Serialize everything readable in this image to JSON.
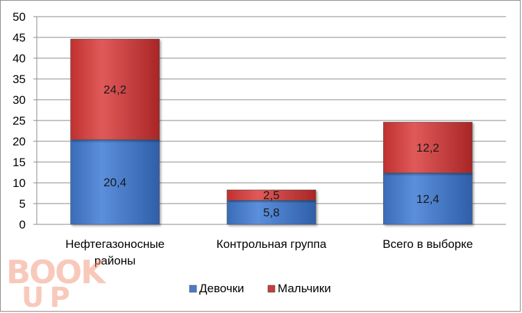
{
  "chart_data": {
    "type": "bar",
    "stacked": true,
    "categories": [
      "Нефтегазоносные районы",
      "Контрольная группа",
      "Всего в выборке"
    ],
    "category_lines": [
      [
        "Нефтегазоносные",
        "районы"
      ],
      [
        "Контрольная группа"
      ],
      [
        "Всего в выборке"
      ]
    ],
    "series": [
      {
        "name": "Девочки",
        "values": [
          20.4,
          5.8,
          12.4
        ],
        "labels": [
          "20,4",
          "5,8",
          "12,4"
        ],
        "color": "#4a7dc8"
      },
      {
        "name": "Мальчики",
        "values": [
          24.2,
          2.5,
          12.2
        ],
        "labels": [
          "24,2",
          "2,5",
          "12,2"
        ],
        "color": "#cc3b3b"
      }
    ],
    "yticks": [
      0,
      5,
      10,
      15,
      20,
      25,
      30,
      35,
      40,
      45,
      50
    ],
    "ylim": [
      0,
      50
    ],
    "grid": true,
    "legend_position": "bottom"
  },
  "watermark": {
    "text": "BOOK UP",
    "color": "#f08a6a"
  }
}
